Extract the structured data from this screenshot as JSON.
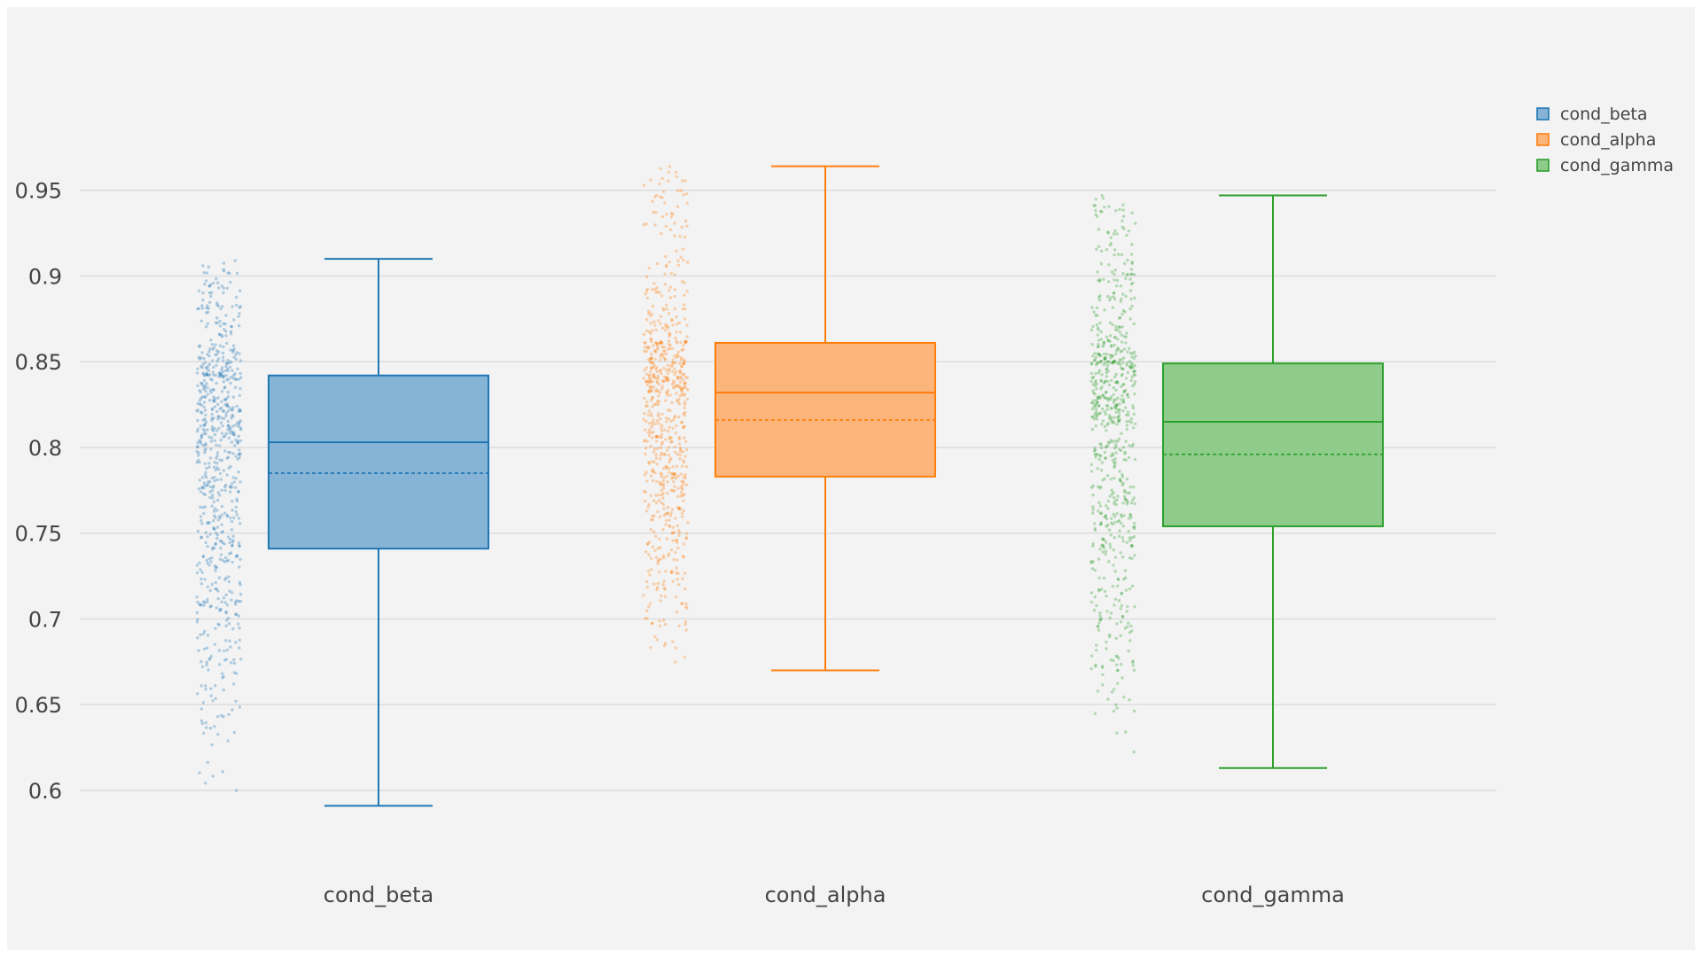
{
  "chart_data": {
    "type": "box",
    "categories": [
      "cond_beta",
      "cond_alpha",
      "cond_gamma"
    ],
    "y_ticks": [
      "0.6",
      "0.65",
      "0.7",
      "0.75",
      "0.8",
      "0.85",
      "0.9",
      "0.95"
    ],
    "y_tick_values": [
      0.6,
      0.65,
      0.7,
      0.75,
      0.8,
      0.85,
      0.9,
      0.95
    ],
    "ylim": [
      0.57,
      1.0
    ],
    "grid": true,
    "legend_position": "top-right",
    "boxpoints": "all",
    "series": [
      {
        "name": "cond_beta",
        "color": "#1f77b4",
        "fill": "#86b4d6",
        "min": 0.591,
        "q1": 0.741,
        "median": 0.803,
        "mean": 0.785,
        "q3": 0.842,
        "max": 0.91
      },
      {
        "name": "cond_alpha",
        "color": "#ff7f0e",
        "fill": "#fbb47a",
        "min": 0.67,
        "q1": 0.783,
        "median": 0.832,
        "mean": 0.816,
        "q3": 0.861,
        "max": 0.964
      },
      {
        "name": "cond_gamma",
        "color": "#2ca02c",
        "fill": "#8fcb8a",
        "min": 0.613,
        "q1": 0.754,
        "median": 0.815,
        "mean": 0.796,
        "q3": 0.849,
        "max": 0.947
      }
    ]
  }
}
